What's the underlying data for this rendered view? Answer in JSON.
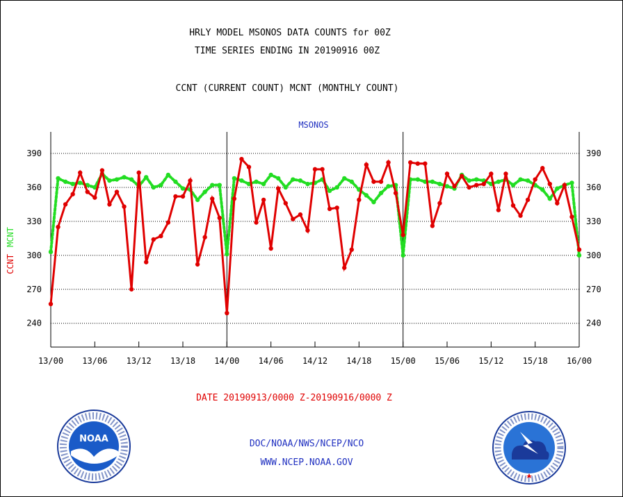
{
  "header": {
    "title_line1": "HRLY MODEL MSONOS DATA COUNTS for 00Z",
    "title_line2": "TIME SERIES ENDING IN 20190916 00Z",
    "title_line3": "CCNT (CURRENT COUNT) MCNT (MONTHLY COUNT)"
  },
  "footer": {
    "date_range": "DATE 20190913/0000 Z-20190916/0000 Z",
    "org": "DOC/NOAA/NWS/NCEP/NCO",
    "url": "WWW.NCEP.NOAA.GOV"
  },
  "logos": {
    "left": {
      "icon": "noaa-logo",
      "text": "NOAA"
    },
    "right": {
      "icon": "national-weather-service-logo"
    }
  },
  "chart_data": {
    "type": "line",
    "title": "MSONOS",
    "ylabel_series1": "CCNT",
    "ylabel_series2": "MCNT",
    "ylim": [
      219,
      409
    ],
    "yticks": [
      240,
      270,
      300,
      330,
      360,
      390
    ],
    "xlim": [
      0,
      72
    ],
    "xticks": [
      {
        "pos": 0,
        "label": "13/00"
      },
      {
        "pos": 6,
        "label": "13/06"
      },
      {
        "pos": 12,
        "label": "13/12"
      },
      {
        "pos": 18,
        "label": "13/18"
      },
      {
        "pos": 24,
        "label": "14/00"
      },
      {
        "pos": 30,
        "label": "14/06"
      },
      {
        "pos": 36,
        "label": "14/12"
      },
      {
        "pos": 42,
        "label": "14/18"
      },
      {
        "pos": 48,
        "label": "15/00"
      },
      {
        "pos": 54,
        "label": "15/06"
      },
      {
        "pos": 60,
        "label": "15/12"
      },
      {
        "pos": 66,
        "label": "15/18"
      },
      {
        "pos": 72,
        "label": "16/00"
      }
    ],
    "day_separators": [
      24,
      48
    ],
    "grid": true,
    "series": [
      {
        "name": "CCNT",
        "color": "#e00000",
        "style": "solid",
        "values": [
          257,
          325,
          345,
          354,
          373,
          356,
          351,
          375,
          345,
          356,
          343,
          270,
          373,
          294,
          314,
          317,
          329,
          352,
          352,
          366,
          292,
          316,
          350,
          333,
          249,
          350,
          385,
          378,
          329,
          349,
          306,
          359,
          346,
          332,
          336,
          322,
          376,
          376,
          341,
          342,
          289,
          305,
          349,
          380,
          365,
          365,
          382,
          355,
          318,
          382,
          381,
          381,
          326,
          346,
          372,
          361,
          370,
          360,
          362,
          363,
          372,
          340,
          372,
          344,
          335,
          349,
          367,
          377,
          363,
          346,
          362,
          334,
          305
        ]
      },
      {
        "name": "MCNT",
        "color": "#22dd22",
        "style": "dotted",
        "values": [
          303,
          368,
          365,
          363,
          364,
          362,
          360,
          372,
          366,
          367,
          369,
          367,
          361,
          369,
          360,
          362,
          371,
          365,
          359,
          358,
          349,
          356,
          362,
          362,
          301,
          368,
          366,
          363,
          365,
          363,
          371,
          368,
          360,
          367,
          366,
          363,
          364,
          367,
          357,
          360,
          368,
          365,
          358,
          353,
          347,
          355,
          361,
          362,
          300,
          367,
          367,
          365,
          365,
          363,
          361,
          359,
          371,
          366,
          367,
          366,
          363,
          365,
          367,
          362,
          367,
          366,
          362,
          358,
          350,
          359,
          362,
          364,
          300
        ]
      }
    ]
  }
}
